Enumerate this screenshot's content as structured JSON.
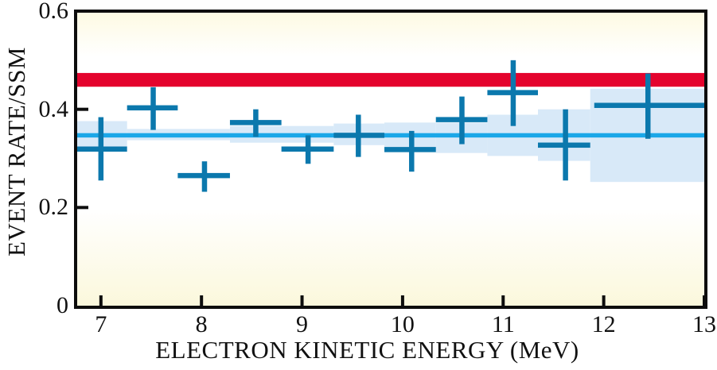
{
  "chart_data": {
    "type": "scatter",
    "title": "",
    "xlabel": "ELECTRON KINETIC ENERGY (MeV)",
    "ylabel": "EVENT RATE/SSM",
    "xlim": [
      6.764,
      13.0
    ],
    "ylim": [
      0,
      0.6
    ],
    "x_ticks": [
      7,
      8,
      9,
      10,
      11,
      12,
      13
    ],
    "y_ticks": [
      0,
      0.2,
      0.4,
      0.6
    ],
    "y_tick_labels": [
      "0",
      "0.2",
      "0.4",
      "0.6"
    ],
    "y_inner_ticks": [
      0.2,
      0.4
    ],
    "grid": false,
    "legend": "none",
    "ssm_prediction_band": {
      "name": "ssm-prediction-band",
      "y_lo": 0.446,
      "y_hi": 0.474
    },
    "best_fit_line": {
      "name": "best-fit-suppression-line",
      "y": 0.347
    },
    "uncertainty_band_segments": [
      {
        "x0": 6.764,
        "x1": 7.26,
        "y_lo": 0.323,
        "y_hi": 0.376
      },
      {
        "x0": 7.26,
        "x1": 8.283,
        "y_lo": 0.337,
        "y_hi": 0.36
      },
      {
        "x0": 8.283,
        "x1": 9.315,
        "y_lo": 0.332,
        "y_hi": 0.366
      },
      {
        "x0": 9.315,
        "x1": 9.819,
        "y_lo": 0.327,
        "y_hi": 0.371
      },
      {
        "x0": 9.819,
        "x1": 10.331,
        "y_lo": 0.321,
        "y_hi": 0.373
      },
      {
        "x0": 10.331,
        "x1": 10.843,
        "y_lo": 0.311,
        "y_hi": 0.373
      },
      {
        "x0": 10.843,
        "x1": 11.346,
        "y_lo": 0.305,
        "y_hi": 0.389
      },
      {
        "x0": 11.346,
        "x1": 11.866,
        "y_lo": 0.295,
        "y_hi": 0.4
      },
      {
        "x0": 11.866,
        "x1": 13.0,
        "y_lo": 0.252,
        "y_hi": 0.442
      }
    ],
    "points": [
      {
        "x": 7.0,
        "x_lo": 6.764,
        "x_hi": 7.26,
        "y": 0.319,
        "y_lo": 0.255,
        "y_hi": 0.384
      },
      {
        "x": 7.52,
        "x_lo": 7.26,
        "x_hi": 7.764,
        "y": 0.403,
        "y_lo": 0.358,
        "y_hi": 0.445
      },
      {
        "x": 8.03,
        "x_lo": 7.764,
        "x_hi": 8.283,
        "y": 0.265,
        "y_lo": 0.232,
        "y_hi": 0.294
      },
      {
        "x": 8.54,
        "x_lo": 8.283,
        "x_hi": 8.795,
        "y": 0.373,
        "y_lo": 0.344,
        "y_hi": 0.4
      },
      {
        "x": 9.06,
        "x_lo": 8.795,
        "x_hi": 9.315,
        "y": 0.319,
        "y_lo": 0.289,
        "y_hi": 0.347
      },
      {
        "x": 9.56,
        "x_lo": 9.315,
        "x_hi": 9.819,
        "y": 0.347,
        "y_lo": 0.303,
        "y_hi": 0.389
      },
      {
        "x": 10.09,
        "x_lo": 9.819,
        "x_hi": 10.331,
        "y": 0.318,
        "y_lo": 0.273,
        "y_hi": 0.356
      },
      {
        "x": 10.59,
        "x_lo": 10.331,
        "x_hi": 10.843,
        "y": 0.379,
        "y_lo": 0.329,
        "y_hi": 0.426
      },
      {
        "x": 11.1,
        "x_lo": 10.843,
        "x_hi": 11.346,
        "y": 0.434,
        "y_lo": 0.366,
        "y_hi": 0.5
      },
      {
        "x": 11.62,
        "x_lo": 11.346,
        "x_hi": 11.866,
        "y": 0.327,
        "y_lo": 0.255,
        "y_hi": 0.4
      },
      {
        "x": 12.44,
        "x_lo": 11.906,
        "x_hi": 13.0,
        "y": 0.408,
        "y_lo": 0.34,
        "y_hi": 0.473
      }
    ],
    "colors": {
      "ssm_band": "#e4032d",
      "best_fit_line": "#1ba7e8",
      "uncertainty_band": "#d8e9f8",
      "data_cross": "#0b78ad",
      "axis": "#0d0d0d",
      "background_tint": "#fcf9df",
      "text": "#111111"
    }
  }
}
